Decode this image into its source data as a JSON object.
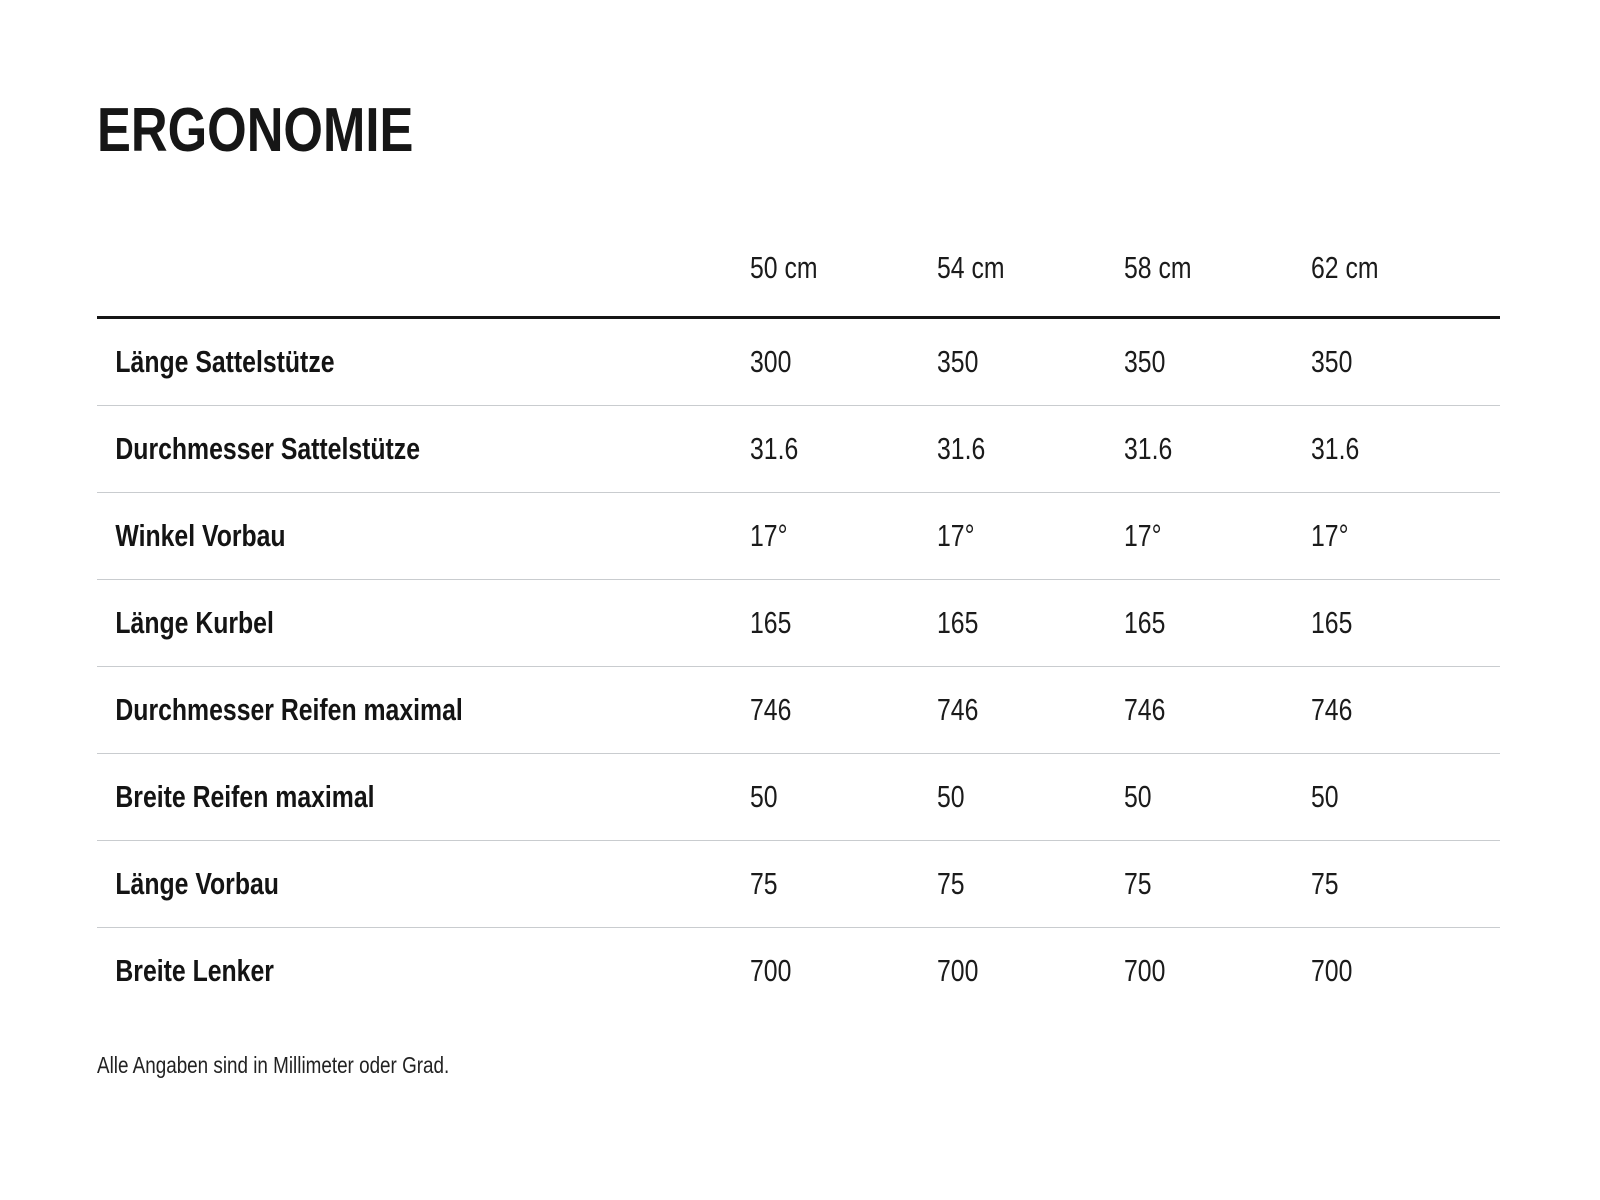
{
  "title": "ERGONOMIE",
  "table": {
    "column_headers": [
      "50 cm",
      "54 cm",
      "58 cm",
      "62 cm"
    ],
    "rows": [
      {
        "label": "Länge Sattelstütze",
        "values": [
          "300",
          "350",
          "350",
          "350"
        ]
      },
      {
        "label": "Durchmesser Sattelstütze",
        "values": [
          "31.6",
          "31.6",
          "31.6",
          "31.6"
        ]
      },
      {
        "label": "Winkel Vorbau",
        "values": [
          "17°",
          "17°",
          "17°",
          "17°"
        ]
      },
      {
        "label": "Länge Kurbel",
        "values": [
          "165",
          "165",
          "165",
          "165"
        ]
      },
      {
        "label": "Durchmesser Reifen maximal",
        "values": [
          "746",
          "746",
          "746",
          "746"
        ]
      },
      {
        "label": "Breite Reifen maximal",
        "values": [
          "50",
          "50",
          "50",
          "50"
        ]
      },
      {
        "label": "Länge Vorbau",
        "values": [
          "75",
          "75",
          "75",
          "75"
        ]
      },
      {
        "label": "Breite Lenker",
        "values": [
          "700",
          "700",
          "700",
          "700"
        ]
      }
    ]
  },
  "footnote": "Alle Angaben sind in Millimeter oder Grad.",
  "colors": {
    "background": "#ffffff",
    "text": "#1b1b1b",
    "header_rule": "#161616",
    "row_divider": "#c9cccf"
  }
}
